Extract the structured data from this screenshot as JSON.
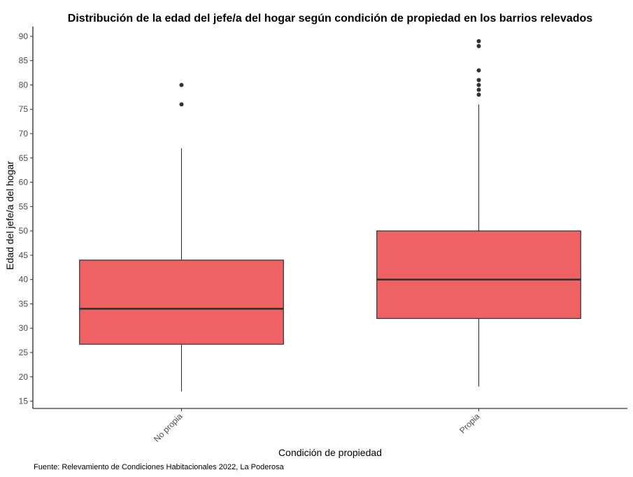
{
  "chart_data": {
    "type": "boxplot",
    "title": "Distribución de la edad del jefe/a del hogar según condición de propiedad en los barrios relevados",
    "xlabel": "Condición de propiedad",
    "ylabel": "Edad del jefe/a del hogar",
    "caption": "Fuente: Relevamiento de Condiciones Habitacionales 2022, La Poderosa",
    "categories": [
      "No propia",
      "Propia"
    ],
    "ylim": [
      13.5,
      92
    ],
    "y_ticks": [
      15,
      20,
      25,
      30,
      35,
      40,
      45,
      50,
      55,
      60,
      65,
      70,
      75,
      80,
      85,
      90
    ],
    "grid": false,
    "legend": "none",
    "box_fill": "#EF6264",
    "box_stroke": "#333333",
    "boxes": [
      {
        "category": "No propia",
        "min": 17,
        "q1": 26.7,
        "median": 34,
        "q3": 44,
        "max": 67,
        "outliers": [
          76,
          80
        ]
      },
      {
        "category": "Propia",
        "min": 18,
        "q1": 32,
        "median": 40,
        "q3": 50,
        "max": 76,
        "outliers": [
          78,
          79,
          80,
          81,
          83,
          88,
          89
        ]
      }
    ]
  }
}
